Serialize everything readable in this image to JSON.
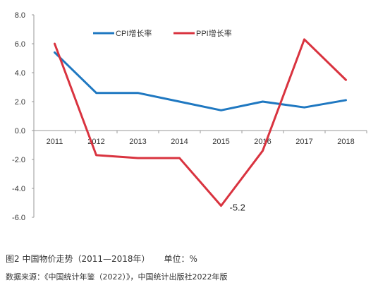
{
  "chart_data": {
    "type": "line",
    "categories": [
      "2011",
      "2012",
      "2013",
      "2014",
      "2015",
      "2016",
      "2017",
      "2018"
    ],
    "series": [
      {
        "name": "CPI增长率",
        "color": "#1f78c1",
        "values": [
          5.4,
          2.6,
          2.6,
          2.0,
          1.4,
          2.0,
          1.6,
          2.1
        ]
      },
      {
        "name": "PPI增长率",
        "color": "#d9333f",
        "values": [
          6.0,
          -1.7,
          -1.9,
          -1.9,
          -5.2,
          -1.4,
          6.3,
          3.5
        ]
      }
    ],
    "ylim": [
      -6.0,
      8.0
    ],
    "yticks": [
      "8.0",
      "6.0",
      "4.0",
      "2.0",
      "0.0",
      "-2.0",
      "-4.0",
      "-6.0"
    ],
    "annotations": [
      {
        "text": "-5.2",
        "series": 1,
        "index": 4
      }
    ],
    "legend": "top",
    "grid": false
  },
  "caption": {
    "figure": "图2 中国物价走势（2011—2018年）",
    "unit": "单位：%",
    "source": "数据来源：《中国统计年鉴（2022）》，中国统计出版社2022年版"
  }
}
